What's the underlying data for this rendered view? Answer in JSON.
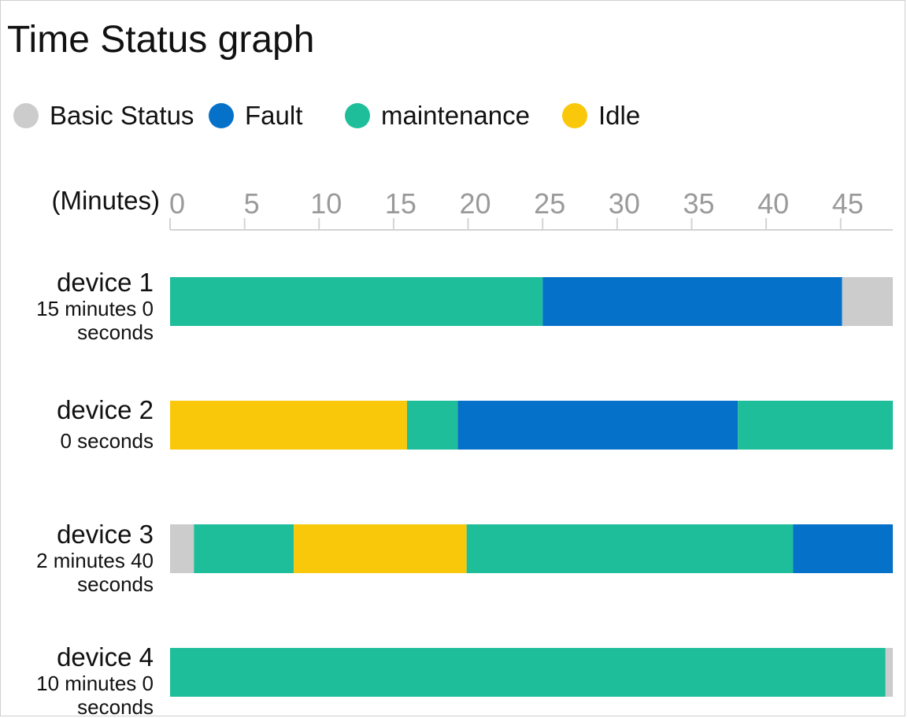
{
  "title": "Time Status graph",
  "legend": [
    {
      "label": "Basic Status",
      "color": "#cccccc",
      "icon": "circle-swatch"
    },
    {
      "label": "Fault",
      "color": "#0671c9",
      "icon": "circle-swatch"
    },
    {
      "label": "maintenance",
      "color": "#1fbe9b",
      "icon": "circle-swatch"
    },
    {
      "label": "Idle",
      "color": "#f9c80a",
      "icon": "circle-swatch"
    }
  ],
  "chart_data": {
    "type": "bar",
    "orientation": "horizontal",
    "stacked": true,
    "title": "Time Status graph",
    "axis_unit_label": "(Minutes)",
    "x_ticks": [
      "0",
      "5",
      "10",
      "15",
      "20",
      "25",
      "30",
      "35",
      "40",
      "45"
    ],
    "xlim": [
      0,
      48.5
    ],
    "axis_position": "top",
    "grid": false,
    "legend_position": "top-left",
    "status_colors": {
      "Basic Status": "#cccccc",
      "Fault": "#0671c9",
      "maintenance": "#1fbe9b",
      "Idle": "#f9c80a"
    },
    "devices": [
      {
        "name": "device 1",
        "time_label": [
          "15 minutes 0",
          "seconds"
        ],
        "segments": [
          {
            "status": "maintenance",
            "start": 0,
            "end": 25.0
          },
          {
            "status": "Fault",
            "start": 25.0,
            "end": 45.1
          },
          {
            "status": "Basic Status",
            "start": 45.1,
            "end": 48.5
          }
        ]
      },
      {
        "name": "device 2",
        "time_label": [
          "0 seconds"
        ],
        "segments": [
          {
            "status": "Idle",
            "start": 0,
            "end": 15.9
          },
          {
            "status": "maintenance",
            "start": 15.9,
            "end": 19.3
          },
          {
            "status": "Fault",
            "start": 19.3,
            "end": 38.1
          },
          {
            "status": "maintenance",
            "start": 38.1,
            "end": 48.5
          }
        ]
      },
      {
        "name": "device 3",
        "time_label": [
          "2 minutes 40",
          "seconds"
        ],
        "segments": [
          {
            "status": "Basic Status",
            "start": 0,
            "end": 1.6
          },
          {
            "status": "maintenance",
            "start": 1.6,
            "end": 8.3
          },
          {
            "status": "Idle",
            "start": 8.3,
            "end": 19.9
          },
          {
            "status": "maintenance",
            "start": 19.9,
            "end": 41.8
          },
          {
            "status": "Fault",
            "start": 41.8,
            "end": 48.5
          }
        ]
      },
      {
        "name": "device 4",
        "time_label": [
          "10 minutes 0",
          "seconds"
        ],
        "segments": [
          {
            "status": "maintenance",
            "start": 0,
            "end": 48.0
          },
          {
            "status": "Basic Status",
            "start": 48.0,
            "end": 48.5
          }
        ]
      }
    ]
  }
}
